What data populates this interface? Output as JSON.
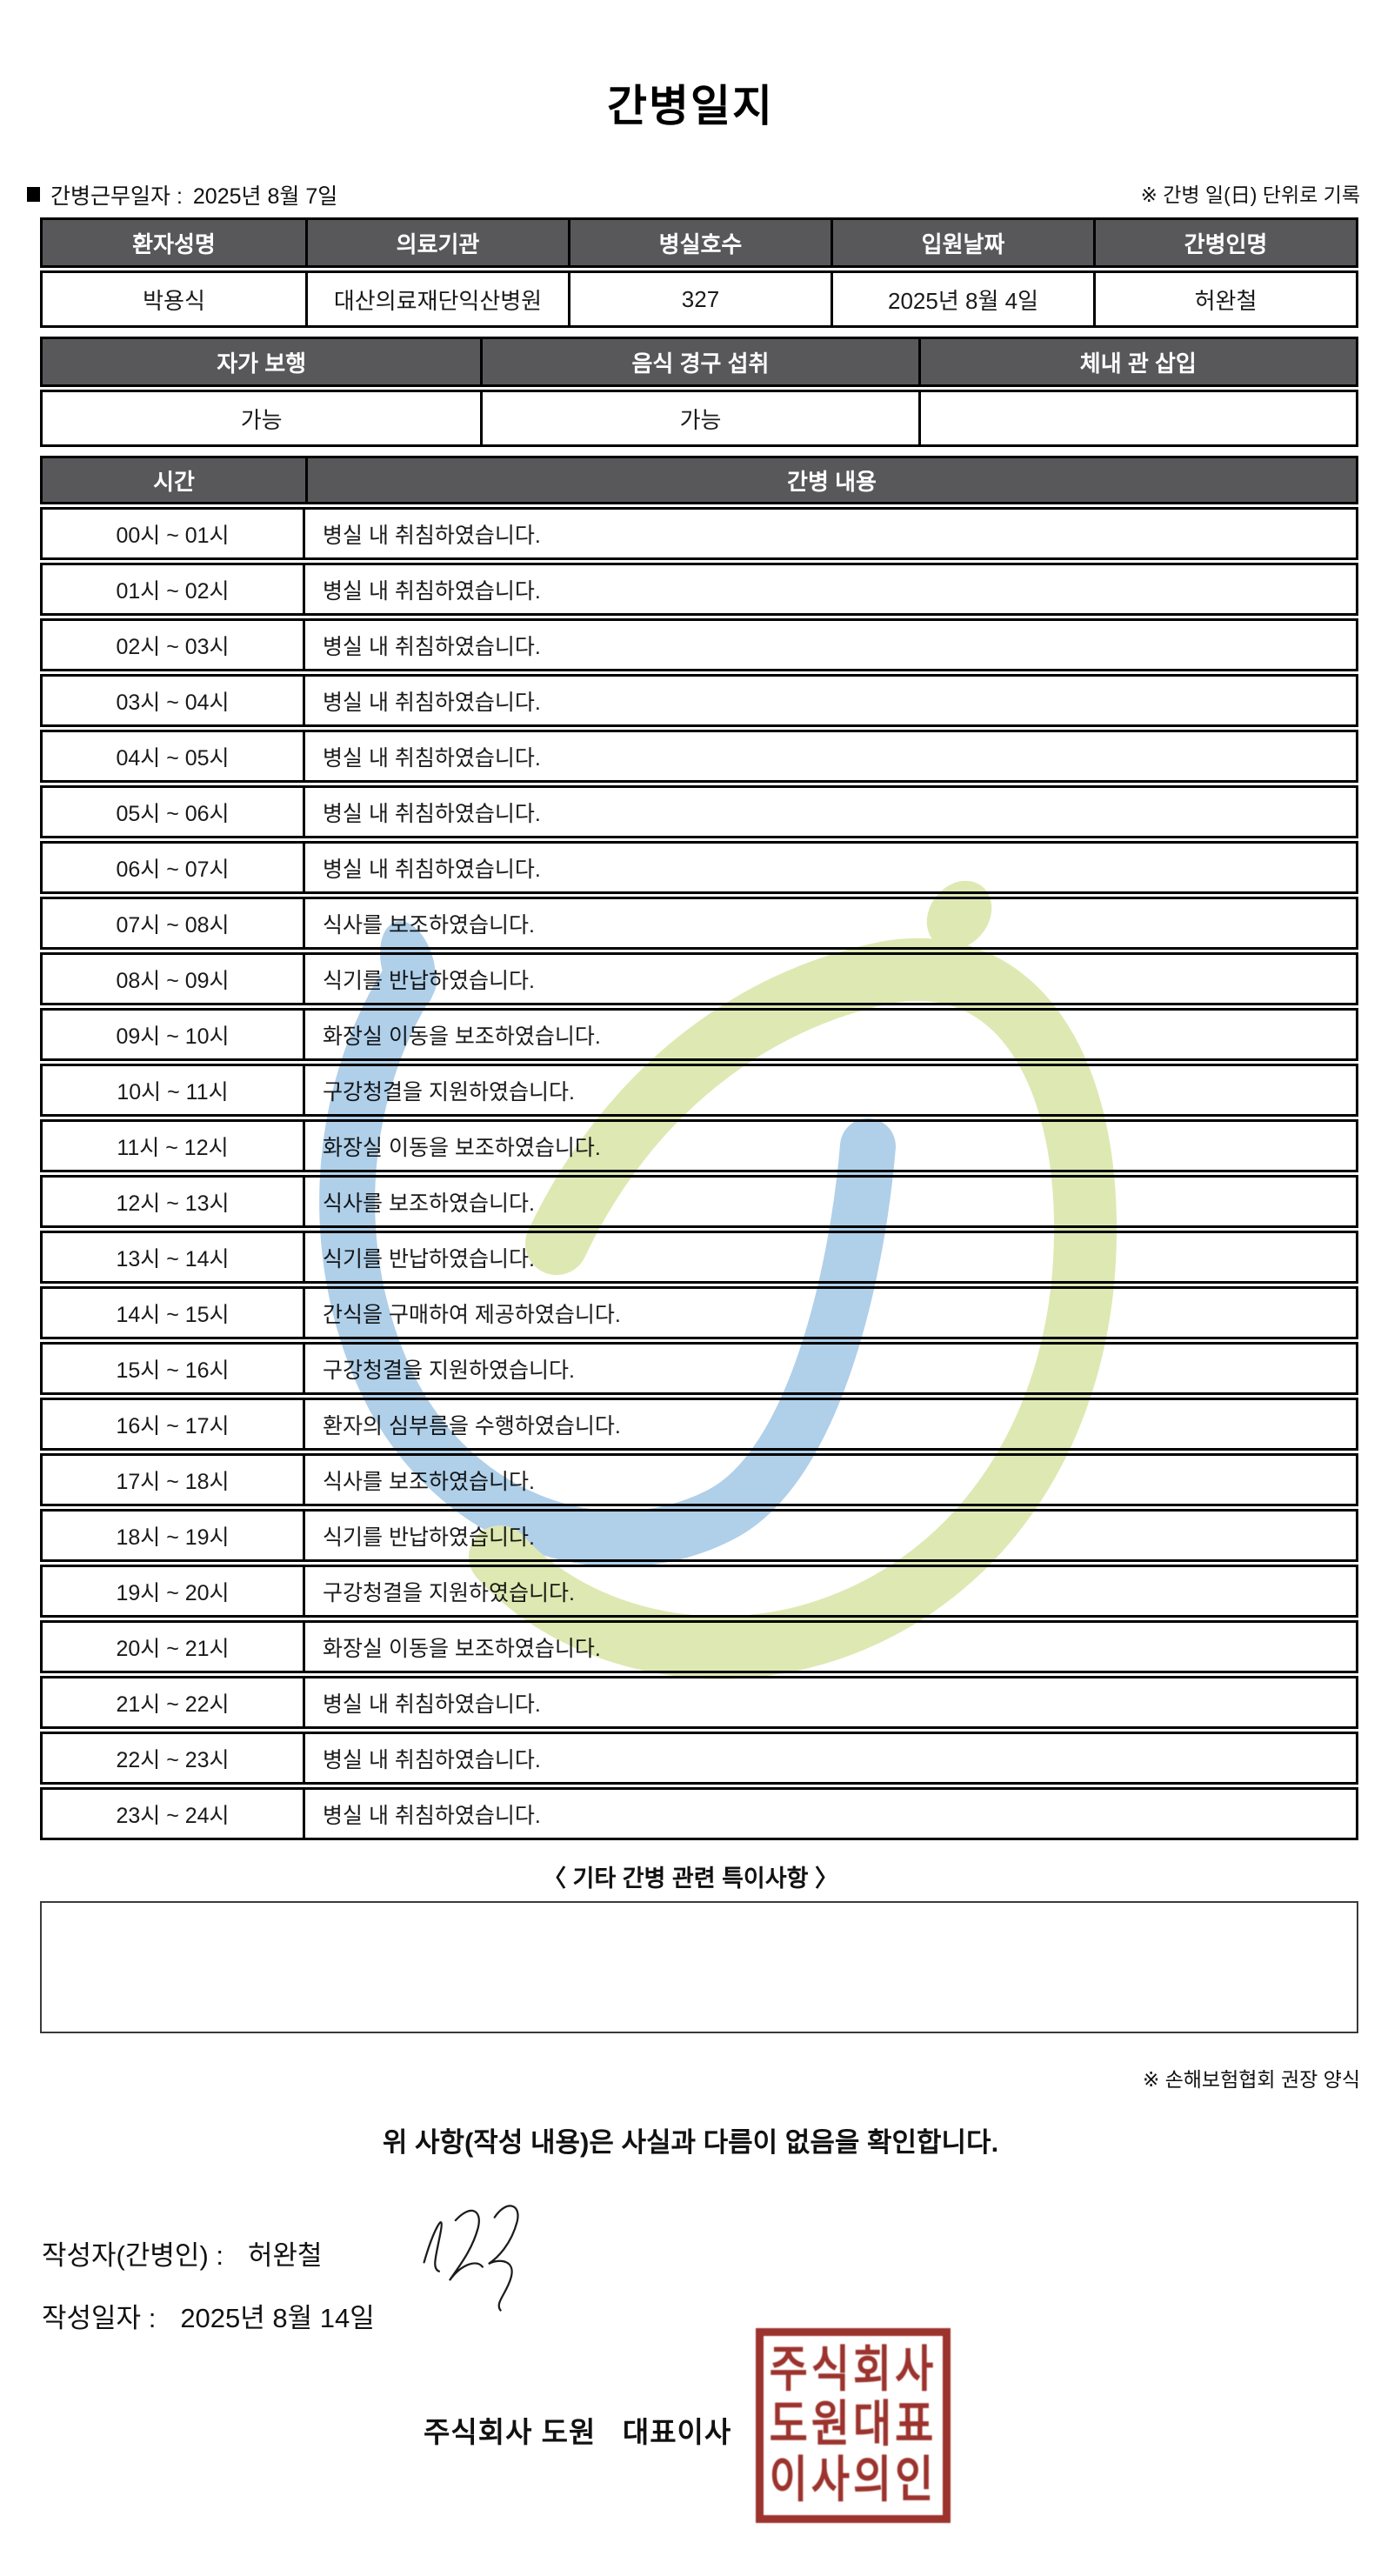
{
  "title": "간병일지",
  "meta": {
    "work_date_label": "간병근무일자  :",
    "work_date": "2025년 8월 7일",
    "unit_note": "※ 간병 일(日) 단위로 기록"
  },
  "patient_table": {
    "headers": [
      "환자성명",
      "의료기관",
      "병실호수",
      "입원날짜",
      "간병인명"
    ],
    "values": [
      "박용식",
      "대산의료재단익산병원",
      "327",
      "2025년 8월 4일",
      "허완철"
    ]
  },
  "status_table": {
    "headers": [
      "자가 보행",
      "음식 경구 섭취",
      "체내 관 삽입"
    ],
    "values": [
      "가능",
      "가능",
      ""
    ]
  },
  "care_table": {
    "time_header": "시간",
    "content_header": "간병 내용",
    "rows": [
      {
        "time": "00시 ~ 01시",
        "content": "병실 내 취침하였습니다."
      },
      {
        "time": "01시 ~ 02시",
        "content": "병실 내 취침하였습니다."
      },
      {
        "time": "02시 ~ 03시",
        "content": "병실 내 취침하였습니다."
      },
      {
        "time": "03시 ~ 04시",
        "content": "병실 내 취침하였습니다."
      },
      {
        "time": "04시 ~ 05시",
        "content": "병실 내 취침하였습니다."
      },
      {
        "time": "05시 ~ 06시",
        "content": "병실 내 취침하였습니다."
      },
      {
        "time": "06시 ~ 07시",
        "content": "병실 내 취침하였습니다."
      },
      {
        "time": "07시 ~ 08시",
        "content": "식사를 보조하였습니다."
      },
      {
        "time": "08시 ~ 09시",
        "content": "식기를 반납하였습니다."
      },
      {
        "time": "09시 ~ 10시",
        "content": "화장실 이동을 보조하였습니다."
      },
      {
        "time": "10시 ~ 11시",
        "content": "구강청결을 지원하였습니다."
      },
      {
        "time": "11시 ~ 12시",
        "content": "화장실 이동을 보조하였습니다."
      },
      {
        "time": "12시 ~ 13시",
        "content": "식사를 보조하였습니다."
      },
      {
        "time": "13시 ~ 14시",
        "content": "식기를 반납하였습니다."
      },
      {
        "time": "14시 ~ 15시",
        "content": "간식을 구매하여 제공하였습니다."
      },
      {
        "time": "15시 ~ 16시",
        "content": "구강청결을 지원하였습니다."
      },
      {
        "time": "16시 ~ 17시",
        "content": "환자의 심부름을 수행하였습니다."
      },
      {
        "time": "17시 ~ 18시",
        "content": "식사를 보조하였습니다."
      },
      {
        "time": "18시 ~ 19시",
        "content": "식기를 반납하였습니다."
      },
      {
        "time": "19시 ~ 20시",
        "content": "구강청결을 지원하였습니다."
      },
      {
        "time": "20시 ~ 21시",
        "content": "화장실 이동을 보조하였습니다."
      },
      {
        "time": "21시 ~ 22시",
        "content": "병실 내 취침하였습니다."
      },
      {
        "time": "22시 ~ 23시",
        "content": "병실 내 취침하였습니다."
      },
      {
        "time": "23시 ~ 24시",
        "content": "병실 내 취침하였습니다."
      }
    ]
  },
  "notes": {
    "title": "〈 기타 간병 관련 특이사항 〉",
    "content": "",
    "form_note": "※ 손해보험협회 권장 양식"
  },
  "confirmation": {
    "statement": "위 사항(작성 내용)은 사실과 다름이 없음을 확인합니다.",
    "writer_label": "작성자(간병인) :",
    "writer_name": "허완철",
    "date_label": "작성일자 :",
    "date": "2025년 8월 14일",
    "company_line": "주식회사 도원   대표이사",
    "seal_lines": [
      "주식회사",
      "도원대표",
      "이사의인"
    ]
  },
  "colors": {
    "header_bg": "#58585a",
    "border": "#000000",
    "seal_red": "#9c332d",
    "watermark_blue": "#a9cbe8",
    "watermark_green": "#dbe6ac"
  }
}
